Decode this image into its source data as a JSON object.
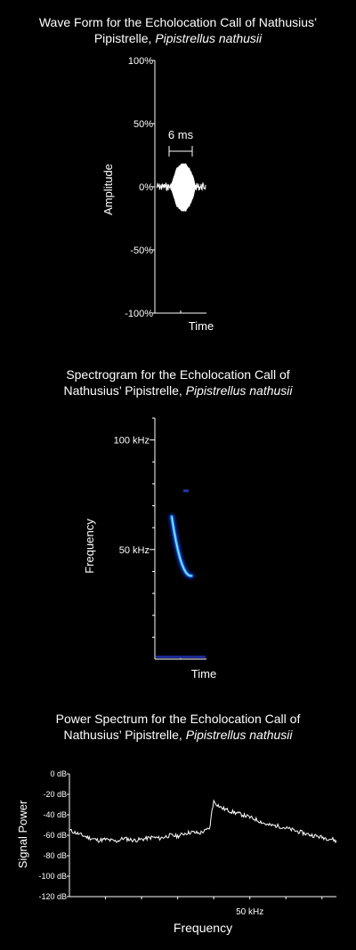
{
  "chart_data": [
    {
      "type": "line",
      "title_main": "Wave Form for the Echolocation Call of Nathusius’",
      "title_line2": "Pipistrelle, ",
      "title_species": "Pipistrellus nathusii",
      "xlabel": "Time",
      "ylabel": "Amplitude",
      "y_ticks": [
        "100%",
        "50%",
        "0%",
        "-50%",
        "-100%"
      ],
      "ylim": [
        -100,
        100
      ],
      "annotation": "6 ms",
      "call_duration_ms": 6,
      "call_peak_amplitude_percent": 19,
      "noise_amplitude_percent": 3
    },
    {
      "type": "heatmap",
      "title_line1": "Spectrogram for the Echolocation Call of",
      "title_line2": "Nathusius’ Pipistrelle, ",
      "title_species": "Pipistrellus nathusii",
      "xlabel": "Time",
      "ylabel": "Frequency",
      "y_ticks": [
        "100 kHz",
        "50 kHz"
      ],
      "y_tick_values_khz": [
        100,
        50
      ],
      "ylim_khz": [
        0,
        110
      ],
      "call_start_khz": 65,
      "call_end_khz": 38,
      "harmonic_khz": 77,
      "color": "#1e90ff"
    },
    {
      "type": "line",
      "title_line1": "Power Spectrum for the Echolocation Call of",
      "title_line2": "Nathusius’ Pipistrelle, ",
      "title_species": "Pipistrellus nathusii",
      "xlabel": "Frequency",
      "ylabel": "Signal Power",
      "y_ticks": [
        "0 dB",
        "-20 dB",
        "-40 dB",
        "-60 dB",
        "-80 dB",
        "-100 dB",
        "-120 dB"
      ],
      "y_tick_values": [
        0,
        -20,
        -40,
        -60,
        -80,
        -100,
        -120
      ],
      "x_tick_label": "50 kHz",
      "ylim": [
        -120,
        0
      ],
      "xlim_khz": [
        0,
        74
      ],
      "x": [
        0,
        2,
        5,
        8,
        10,
        13,
        15,
        18,
        20,
        23,
        25,
        28,
        30,
        32,
        34,
        36,
        38,
        39,
        39.5,
        40,
        42,
        45,
        48,
        52,
        55,
        58,
        62,
        66,
        70,
        73,
        74
      ],
      "y": [
        -55,
        -58,
        -62,
        -65,
        -64,
        -66,
        -63,
        -65,
        -64,
        -62,
        -63,
        -60,
        -61,
        -58,
        -57,
        -58,
        -55,
        -52,
        -35,
        -27,
        -33,
        -37,
        -40,
        -45,
        -50,
        -51,
        -55,
        -59,
        -62,
        -64,
        -66
      ]
    }
  ]
}
